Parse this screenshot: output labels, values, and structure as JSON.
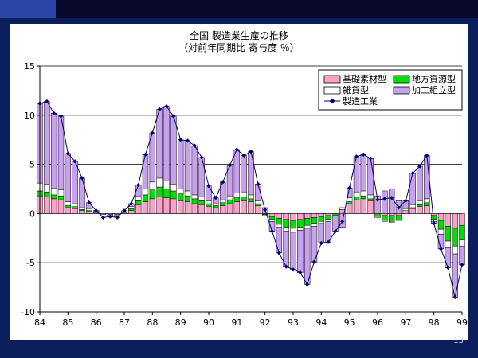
{
  "slide": {
    "number": "13"
  },
  "chart_data": {
    "type": "bar",
    "title": "全国 製造業生産の推移",
    "subtitle": "（対前年同期比 寄与度 ％）",
    "xlabel": "",
    "ylabel": "",
    "ylim": [
      -10,
      15
    ],
    "yticks": [
      15,
      10,
      5,
      0,
      -5,
      -10
    ],
    "grid": true,
    "legend_position": "top-right",
    "x_tick_labels": [
      "84",
      "85",
      "86",
      "87",
      "88",
      "89",
      "90",
      "91",
      "92",
      "93",
      "94",
      "95",
      "96",
      "97",
      "98",
      "99"
    ],
    "colors": {
      "basic_materials": "#ffa0c8",
      "local_resources": "#00dd00",
      "miscellaneous": "#ffffff",
      "processing_assembly": "#c8a0f0",
      "manufacturing_total": "#00006a"
    },
    "legend": {
      "basic_materials": "基礎素材型",
      "local_resources": "地方資源型",
      "miscellaneous": "雑貨型",
      "processing_assembly": "加工組立型",
      "manufacturing_total": "製造工業"
    },
    "categories": [
      "84Q1",
      "84Q2",
      "84Q3",
      "84Q4",
      "85Q1",
      "85Q2",
      "85Q3",
      "85Q4",
      "86Q1",
      "86Q2",
      "86Q3",
      "86Q4",
      "87Q1",
      "87Q2",
      "87Q3",
      "87Q4",
      "88Q1",
      "88Q2",
      "88Q3",
      "88Q4",
      "89Q1",
      "89Q2",
      "89Q3",
      "89Q4",
      "90Q1",
      "90Q2",
      "90Q3",
      "90Q4",
      "91Q1",
      "91Q2",
      "91Q3",
      "91Q4",
      "92Q1",
      "92Q2",
      "92Q3",
      "92Q4",
      "93Q1",
      "93Q2",
      "93Q3",
      "93Q4",
      "94Q1",
      "94Q2",
      "94Q3",
      "94Q4",
      "95Q1",
      "95Q2",
      "95Q3",
      "95Q4",
      "96Q1",
      "96Q2",
      "96Q3",
      "96Q4",
      "97Q1",
      "97Q2",
      "97Q3",
      "97Q4",
      "98Q1",
      "98Q2",
      "98Q3",
      "98Q4",
      "99Q1"
    ],
    "series": [
      {
        "name": "基礎素材型",
        "key": "basic_materials",
        "values": [
          1.8,
          1.7,
          1.5,
          1.4,
          0.6,
          0.5,
          0.3,
          0.2,
          0.1,
          0.0,
          -0.1,
          -0.1,
          0.1,
          0.3,
          0.9,
          1.2,
          1.5,
          1.7,
          1.6,
          1.5,
          1.3,
          1.2,
          1.0,
          0.9,
          0.7,
          0.6,
          0.8,
          1.0,
          1.2,
          1.3,
          1.2,
          0.8,
          0.0,
          -0.3,
          -0.5,
          -0.6,
          -0.7,
          -0.6,
          -0.5,
          -0.4,
          -0.3,
          -0.2,
          0.0,
          0.4,
          1.0,
          1.4,
          1.5,
          1.3,
          0.0,
          -0.2,
          -0.2,
          -0.2,
          0.3,
          0.5,
          0.7,
          0.8,
          -0.2,
          -0.7,
          -1.3,
          -1.5,
          -1.2
        ]
      },
      {
        "name": "地方資源型",
        "key": "local_resources",
        "values": [
          0.5,
          0.5,
          0.4,
          0.4,
          0.2,
          0.2,
          0.1,
          0.1,
          0.0,
          0.0,
          0.0,
          0.0,
          0.1,
          0.2,
          0.4,
          0.7,
          0.9,
          1.0,
          0.9,
          0.8,
          0.7,
          0.6,
          0.5,
          0.4,
          0.3,
          0.2,
          0.3,
          0.4,
          0.4,
          0.4,
          0.3,
          0.2,
          -0.1,
          -0.3,
          -0.6,
          -0.8,
          -0.8,
          -0.8,
          -0.7,
          -0.6,
          -0.5,
          -0.4,
          -0.2,
          0.0,
          0.2,
          0.3,
          0.3,
          0.2,
          -0.3,
          -0.5,
          -0.6,
          -0.5,
          0.0,
          0.1,
          0.2,
          0.3,
          -0.4,
          -0.9,
          -1.5,
          -1.8,
          -1.5
        ]
      },
      {
        "name": "雑貨型",
        "key": "miscellaneous",
        "values": [
          0.8,
          0.8,
          0.7,
          0.6,
          0.4,
          0.3,
          0.2,
          0.2,
          0.1,
          0.0,
          -0.1,
          -0.1,
          0.1,
          0.2,
          0.5,
          0.6,
          0.8,
          0.9,
          0.8,
          0.7,
          0.5,
          0.5,
          0.4,
          0.4,
          0.3,
          0.2,
          0.3,
          0.4,
          0.5,
          0.5,
          0.4,
          0.3,
          -0.1,
          -0.2,
          -0.3,
          -0.4,
          -0.4,
          -0.3,
          -0.3,
          -0.3,
          -0.2,
          -0.2,
          0.0,
          0.2,
          0.4,
          0.5,
          0.5,
          0.4,
          -0.1,
          -0.1,
          -0.1,
          0.0,
          0.2,
          0.3,
          0.4,
          0.4,
          -0.2,
          -0.5,
          -0.7,
          -0.8,
          -0.6
        ]
      },
      {
        "name": "加工組立型",
        "key": "processing_assembly",
        "values": [
          8.1,
          8.4,
          7.6,
          7.5,
          4.9,
          4.3,
          3.0,
          0.6,
          0.1,
          -0.1,
          -0.1,
          -0.2,
          0.0,
          0.3,
          1.1,
          3.5,
          5.0,
          7.0,
          7.6,
          6.9,
          5.0,
          5.1,
          5.0,
          4.0,
          1.5,
          0.6,
          1.8,
          3.1,
          4.4,
          3.7,
          4.4,
          1.7,
          0.6,
          -1.0,
          -2.6,
          -3.6,
          -3.8,
          -4.3,
          -5.7,
          -3.6,
          -2.0,
          -2.1,
          -1.6,
          -1.4,
          1.0,
          3.6,
          3.7,
          3.7,
          1.8,
          2.3,
          2.5,
          1.3,
          0.8,
          3.2,
          3.5,
          4.4,
          -0.2,
          -1.5,
          -2.0,
          -4.4,
          -1.9
        ]
      },
      {
        "name": "製造工業",
        "key": "manufacturing_total",
        "values": [
          11.2,
          11.4,
          10.2,
          9.9,
          6.1,
          5.3,
          3.6,
          1.1,
          0.3,
          -0.4,
          -0.3,
          -0.4,
          0.3,
          1.0,
          2.9,
          6.0,
          8.2,
          10.6,
          10.9,
          9.9,
          7.5,
          7.4,
          6.9,
          5.7,
          2.8,
          1.6,
          3.2,
          4.9,
          6.5,
          5.9,
          6.3,
          3.0,
          0.4,
          -1.8,
          -4.0,
          -5.4,
          -5.7,
          -6.0,
          -7.2,
          -4.9,
          -3.0,
          -2.9,
          -1.8,
          -0.8,
          2.6,
          5.8,
          6.0,
          5.6,
          1.4,
          1.5,
          1.6,
          0.6,
          1.3,
          4.1,
          4.8,
          5.9,
          -1.0,
          -3.6,
          -5.5,
          -8.5,
          -5.2
        ]
      }
    ]
  }
}
